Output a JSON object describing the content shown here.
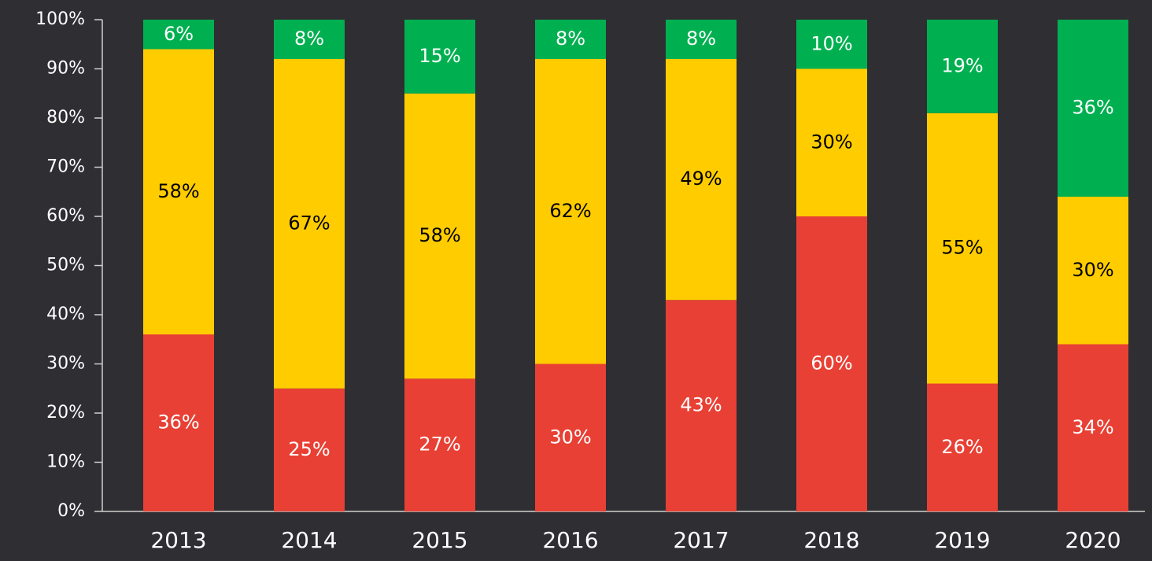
{
  "chart_data": {
    "type": "stacked_bar",
    "categories": [
      "2013",
      "2014",
      "2015",
      "2016",
      "2017",
      "2018",
      "2019",
      "2020"
    ],
    "series": [
      {
        "color": "#e84034",
        "label_color": "#ffffff",
        "values": [
          36,
          25,
          27,
          30,
          43,
          60,
          26,
          34
        ],
        "value_labels": [
          "36%",
          "25%",
          "27%",
          "30%",
          "43%",
          "60%",
          "26%",
          "34%"
        ]
      },
      {
        "color": "#ffcc00",
        "label_color": "#000000",
        "values": [
          58,
          67,
          58,
          62,
          49,
          30,
          55,
          30
        ],
        "value_labels": [
          "58%",
          "67%",
          "58%",
          "62%",
          "49%",
          "30%",
          "55%",
          "30%"
        ]
      },
      {
        "color": "#00b050",
        "label_color": "#ffffff",
        "values": [
          6,
          8,
          15,
          8,
          8,
          10,
          19,
          36
        ],
        "value_labels": [
          "6%",
          "8%",
          "15%",
          "8%",
          "8%",
          "10%",
          "19%",
          "36%"
        ]
      }
    ],
    "ylim": [
      0,
      100
    ],
    "yticks": [
      {
        "value": 0,
        "label": "0%"
      },
      {
        "value": 10,
        "label": "10%"
      },
      {
        "value": 20,
        "label": "20%"
      },
      {
        "value": 30,
        "label": "30%"
      },
      {
        "value": 40,
        "label": "40%"
      },
      {
        "value": 50,
        "label": "50%"
      },
      {
        "value": 60,
        "label": "60%"
      },
      {
        "value": 70,
        "label": "70%"
      },
      {
        "value": 80,
        "label": "80%"
      },
      {
        "value": 90,
        "label": "90%"
      },
      {
        "value": 100,
        "label": "100%"
      }
    ],
    "grid": false
  }
}
